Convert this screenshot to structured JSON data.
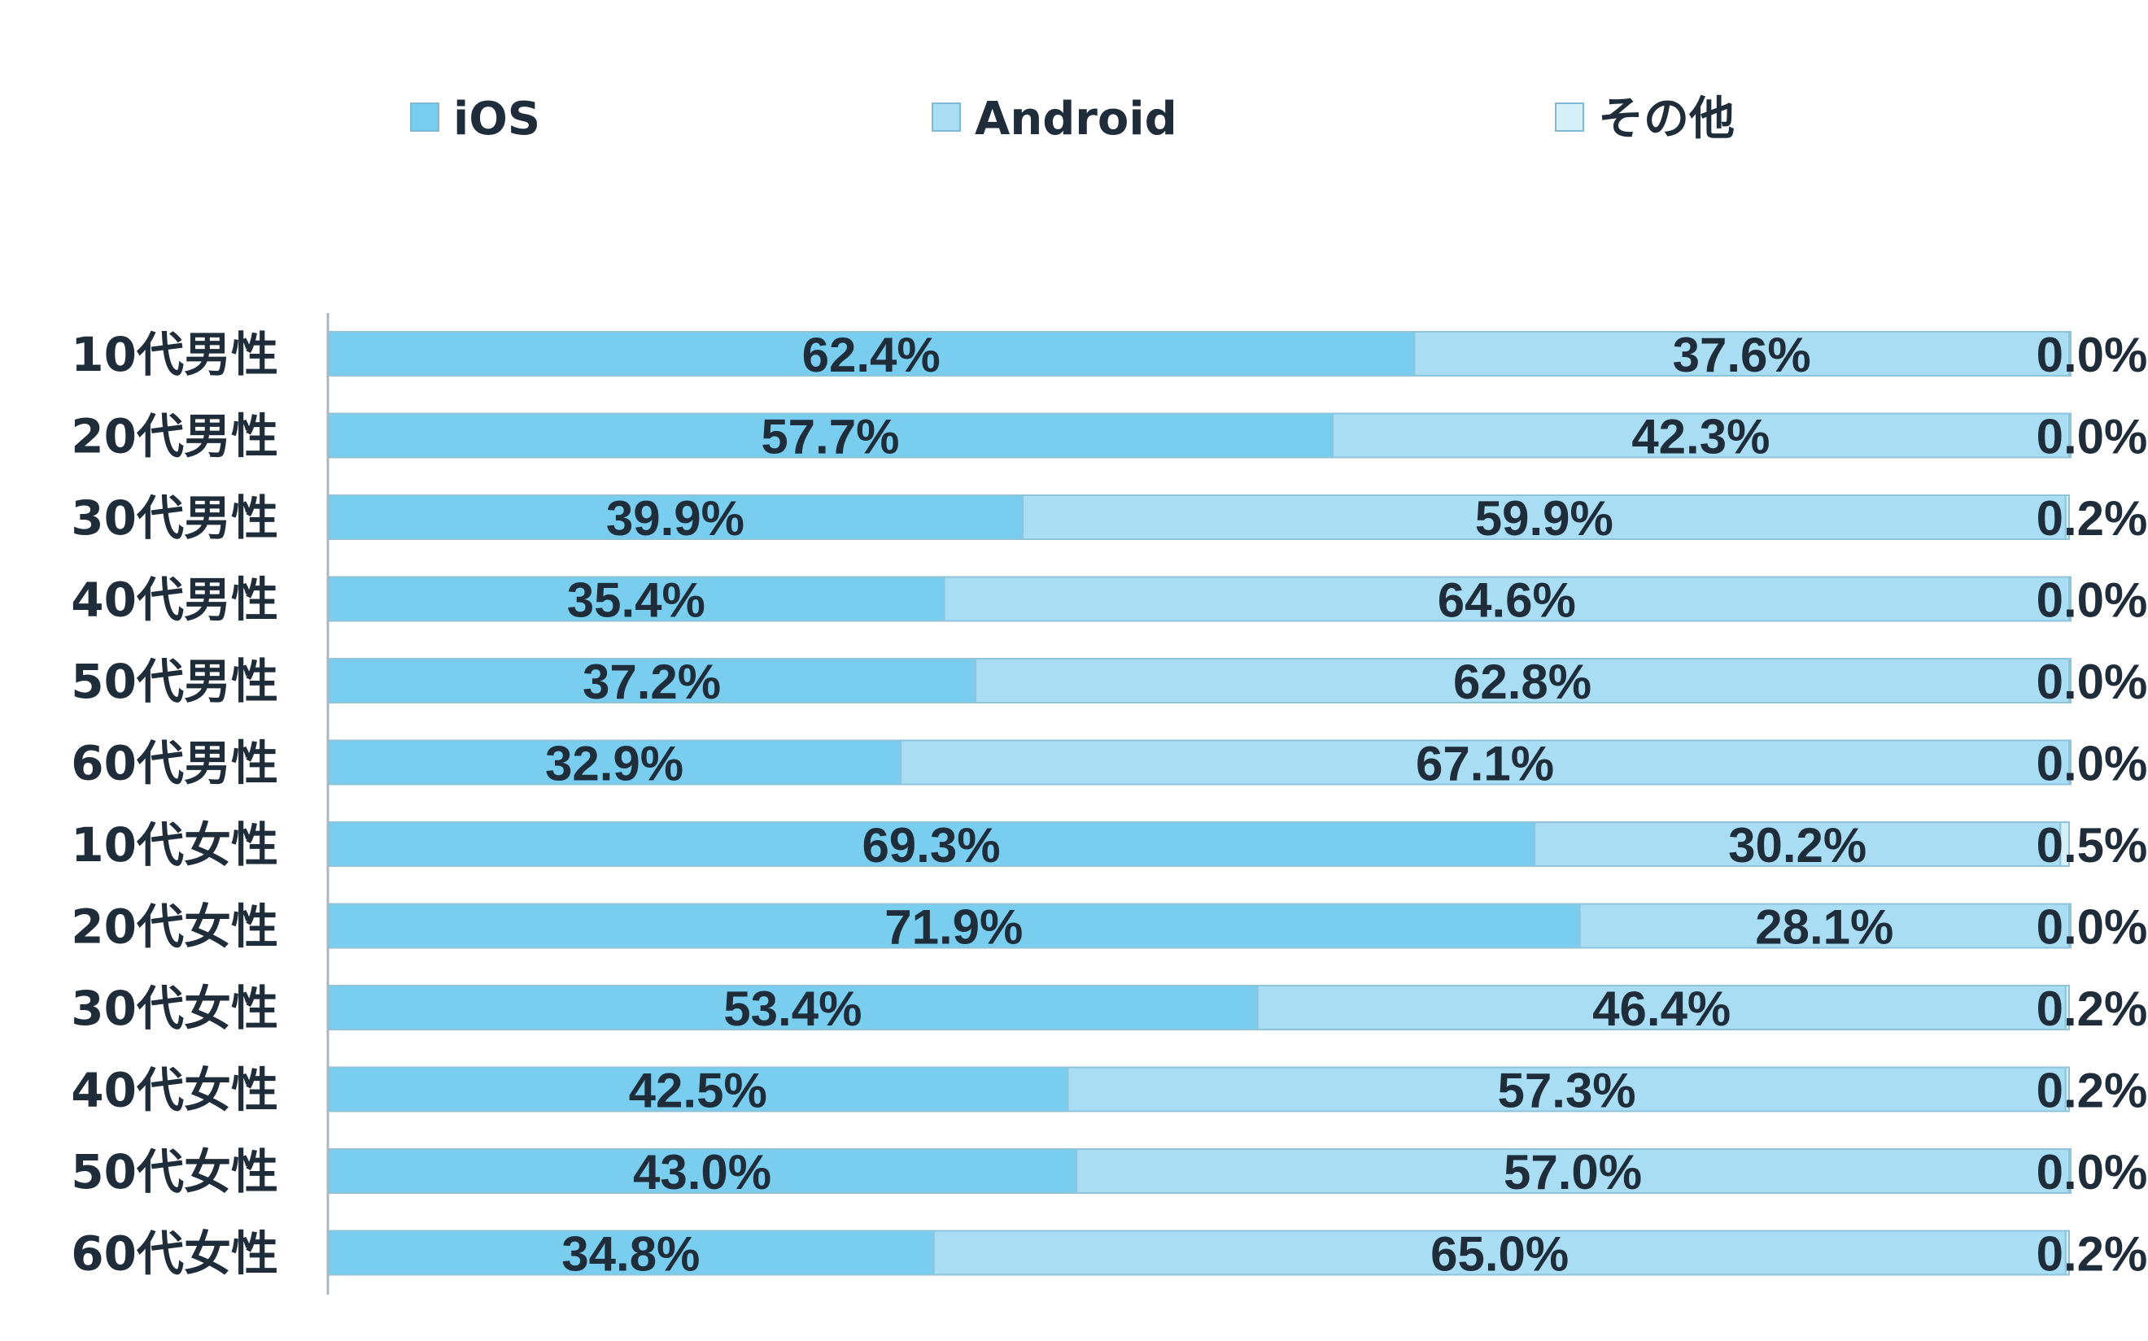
{
  "chart_data": {
    "type": "bar",
    "orientation": "horizontal",
    "stacked": true,
    "percent_stacked": true,
    "categories": [
      "10代男性",
      "20代男性",
      "30代男性",
      "40代男性",
      "50代男性",
      "60代男性",
      "10代女性",
      "20代女性",
      "30代女性",
      "40代女性",
      "50代女性",
      "60代女性"
    ],
    "series": [
      {
        "name": "iOS",
        "color": "#79cdee",
        "values": [
          62.4,
          57.7,
          39.9,
          35.4,
          37.2,
          32.9,
          69.3,
          71.9,
          53.4,
          42.5,
          43.0,
          34.8
        ],
        "labels": [
          "62.4%",
          "57.7%",
          "39.9%",
          "35.4%",
          "37.2%",
          "32.9%",
          "69.3%",
          "71.9%",
          "53.4%",
          "42.5%",
          "43.0%",
          "34.8%"
        ]
      },
      {
        "name": "Android",
        "color": "#a8ddf3",
        "values": [
          37.6,
          42.3,
          59.9,
          64.6,
          62.8,
          67.1,
          30.2,
          28.1,
          46.4,
          57.3,
          57.0,
          65.0
        ],
        "labels": [
          "37.6%",
          "42.3%",
          "59.9%",
          "64.6%",
          "62.8%",
          "67.1%",
          "30.2%",
          "28.1%",
          "46.4%",
          "57.3%",
          "57.0%",
          "65.0%"
        ]
      },
      {
        "name": "その他",
        "color": "#d6f0fa",
        "values": [
          0.0,
          0.0,
          0.2,
          0.0,
          0.0,
          0.0,
          0.5,
          0.0,
          0.2,
          0.2,
          0.0,
          0.2
        ],
        "labels": [
          "0.0%",
          "0.0%",
          "0.2%",
          "0.0%",
          "0.0%",
          "0.0%",
          "0.5%",
          "0.0%",
          "0.2%",
          "0.2%",
          "0.0%",
          "0.2%"
        ]
      }
    ],
    "xlim": [
      0,
      100
    ],
    "legend_position": "top",
    "grid": false
  }
}
